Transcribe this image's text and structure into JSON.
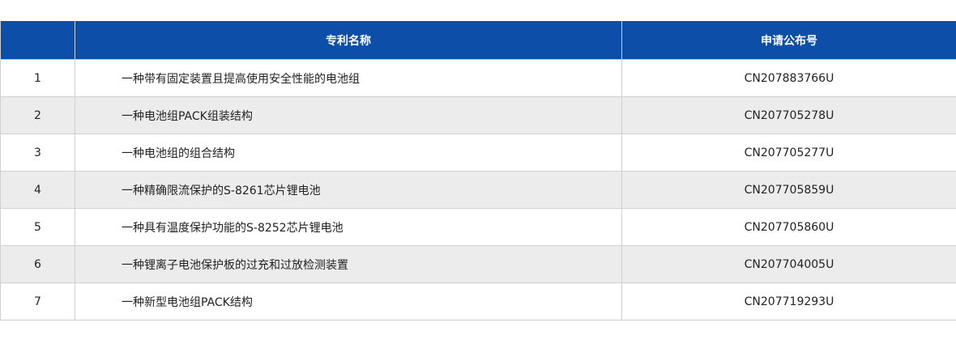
{
  "table": {
    "headers": [
      "",
      "专利名称",
      "申请公布号"
    ],
    "header_color": "#0d4fa8",
    "rows": [
      {
        "no": "1",
        "name": "一种带有固定装置且提高使用安全性能的电池组",
        "code": "CN207883766U"
      },
      {
        "no": "2",
        "name": "一种电池组PACK组装结构",
        "code": "CN207705278U"
      },
      {
        "no": "3",
        "name": "一种电池组的组合结构",
        "code": "CN207705277U"
      },
      {
        "no": "4",
        "name": "一种精确限流保护的S-8261芯片锂电池",
        "code": "CN207705859U"
      },
      {
        "no": "5",
        "name": "一种具有温度保护功能的S-8252芯片锂电池",
        "code": "CN207705860U"
      },
      {
        "no": "6",
        "name": "一种锂离子电池保护板的过充和过放检测装置",
        "code": "CN207704005U"
      },
      {
        "no": "7",
        "name": "一种新型电池组PACK结构",
        "code": "CN207719293U"
      }
    ]
  }
}
